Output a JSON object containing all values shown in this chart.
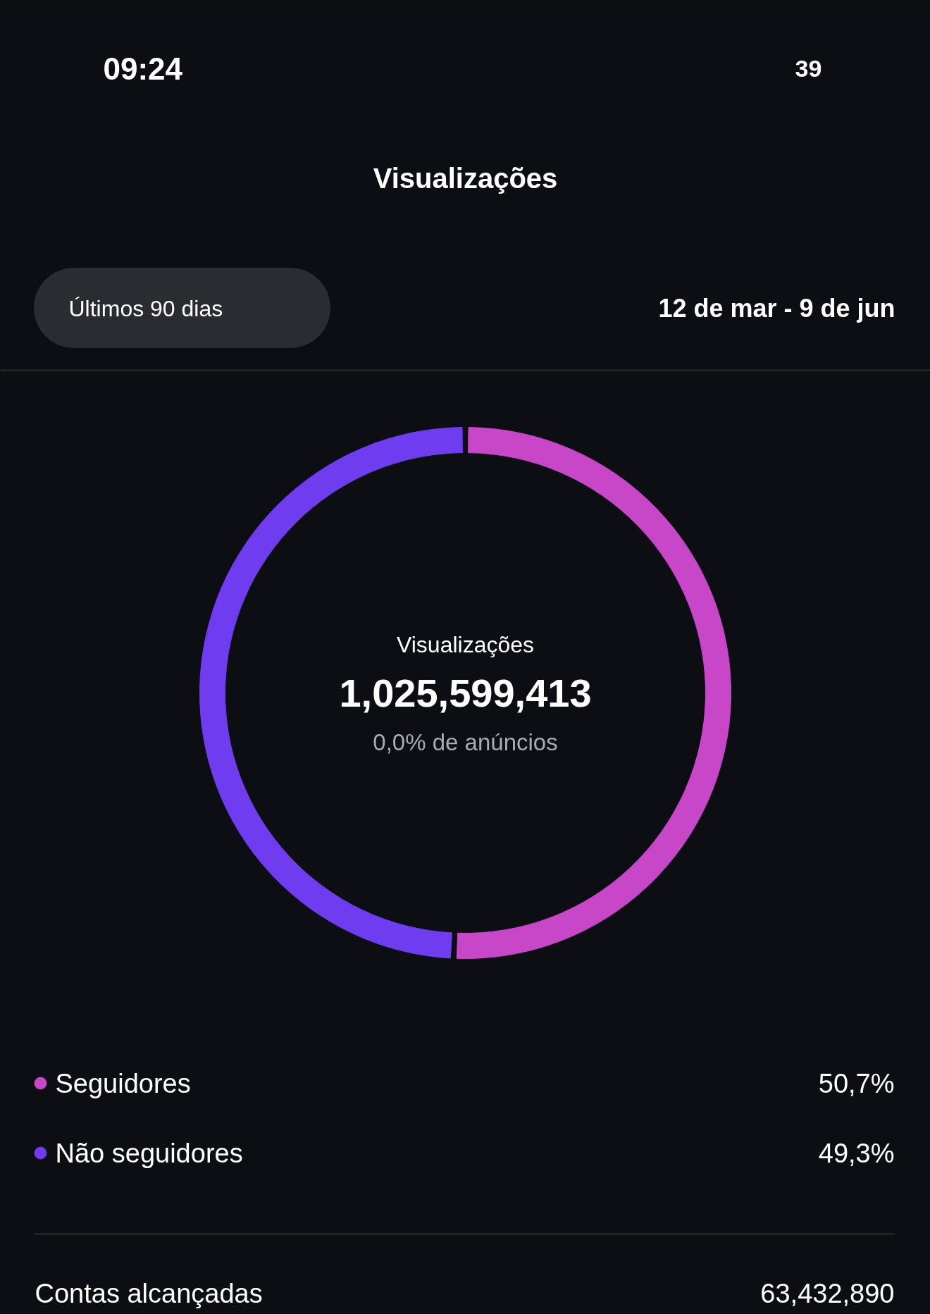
{
  "chart_data": {
    "type": "donut",
    "title": "Visualizações",
    "subtitle": "12 de mar - 9 de jun",
    "categories": [
      "Seguidores",
      "Não seguidores"
    ],
    "values": [
      50.7,
      49.3
    ],
    "colors": [
      "#c846c8",
      "#6f3cf0"
    ],
    "value_labels": [
      "50,7%",
      "49,3%"
    ],
    "legend": "bottom",
    "annotations": [
      "09:24",
      "39",
      "Últimos 90 dias",
      "Visualizações",
      "1,025,599,413",
      "0,0% de anúncios",
      "Contas alcançadas",
      "63,432,890"
    ]
  }
}
